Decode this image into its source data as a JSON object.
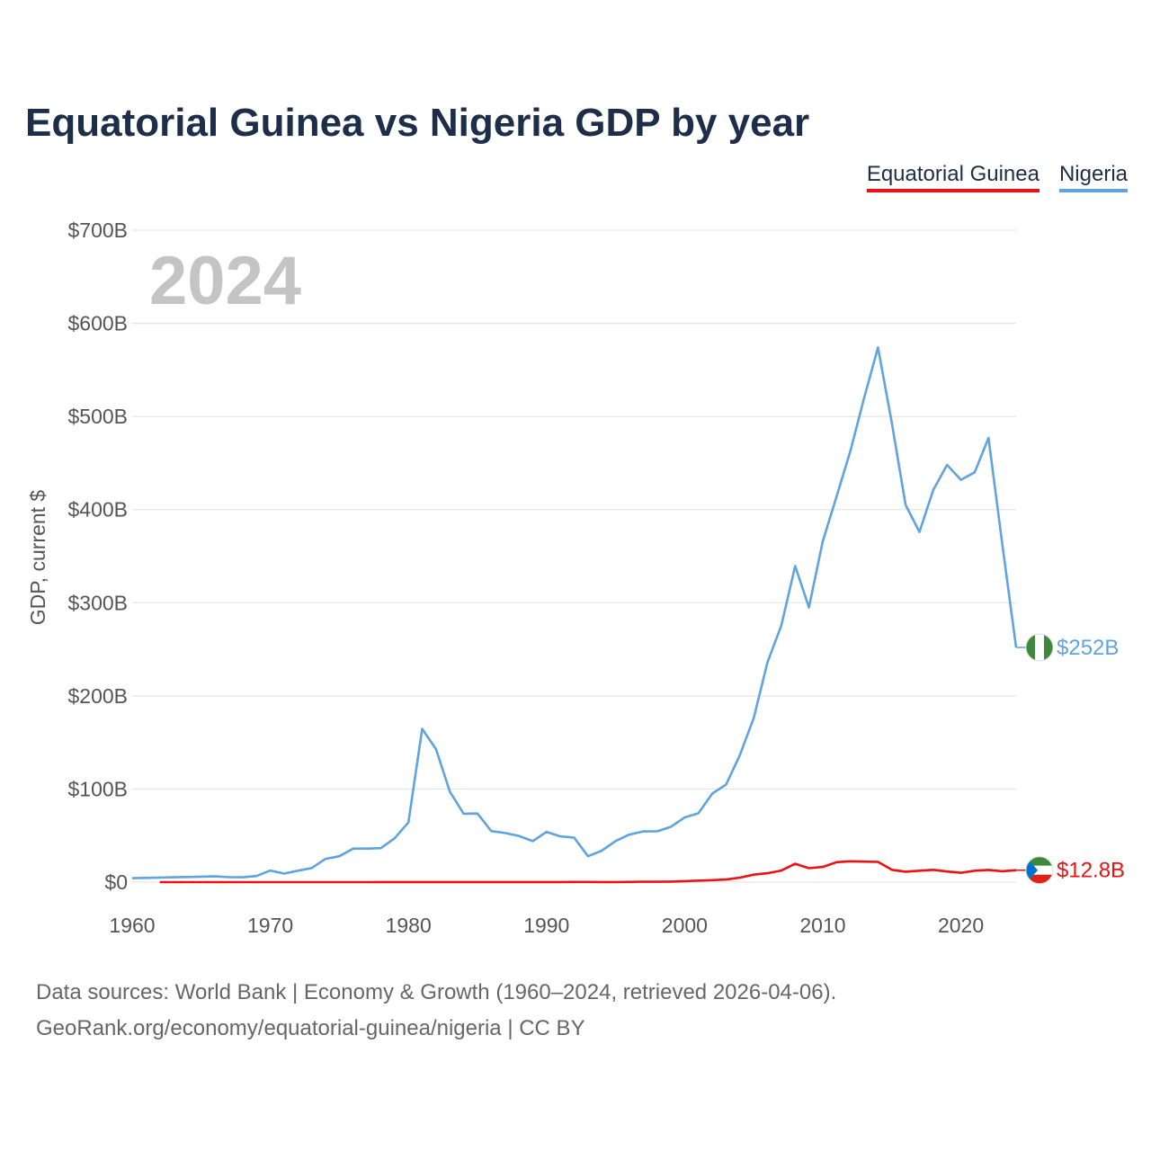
{
  "title": "Equatorial Guinea vs Nigeria GDP by year",
  "legend": {
    "equatorial_guinea": "Equatorial Guinea",
    "nigeria": "Nigeria"
  },
  "source": {
    "line1": "Data sources: World Bank | Economy & Growth (1960–2024, retrieved 2026-04-06).",
    "line2": "GeoRank.org/economy/equatorial-guinea/nigeria | CC BY"
  },
  "chart_data": {
    "type": "line",
    "title": "Equatorial Guinea vs Nigeria GDP by year",
    "ylabel": "GDP, current $",
    "xlabel": "",
    "xlim": [
      1960,
      2024
    ],
    "ylim": [
      0,
      700
    ],
    "y_unit": "billion US$",
    "x_ticks": [
      1960,
      1970,
      1980,
      1990,
      2000,
      2010,
      2020
    ],
    "y_ticks": [
      0,
      100,
      200,
      300,
      400,
      500,
      600,
      700
    ],
    "y_tick_labels": [
      "$0",
      "$100B",
      "$200B",
      "$300B",
      "$400B",
      "$500B",
      "$600B",
      "$700B"
    ],
    "year_label": "2024",
    "grid": true,
    "legend_position": "top-right",
    "series": [
      {
        "name": "Nigeria",
        "color": "#5fa3e0",
        "end_label": "$252B",
        "x": [
          1960,
          1961,
          1962,
          1963,
          1964,
          1965,
          1966,
          1967,
          1968,
          1969,
          1970,
          1971,
          1972,
          1973,
          1974,
          1975,
          1976,
          1977,
          1978,
          1979,
          1980,
          1981,
          1982,
          1983,
          1984,
          1985,
          1986,
          1987,
          1988,
          1989,
          1990,
          1991,
          1992,
          1993,
          1994,
          1995,
          1996,
          1997,
          1998,
          1999,
          2000,
          2001,
          2002,
          2003,
          2004,
          2005,
          2006,
          2007,
          2008,
          2009,
          2010,
          2011,
          2012,
          2013,
          2014,
          2015,
          2016,
          2017,
          2018,
          2019,
          2020,
          2021,
          2022,
          2023,
          2024
        ],
        "values": [
          4.2,
          4.5,
          4.9,
          5.2,
          5.5,
          5.9,
          6.2,
          5.3,
          5.2,
          6.6,
          12.5,
          9.2,
          12.3,
          15.2,
          25.0,
          27.8,
          36.0,
          36.0,
          36.5,
          47.0,
          64.2,
          164.5,
          142.8,
          97.1,
          73.5,
          73.7,
          54.8,
          52.7,
          49.6,
          44.0,
          54.0,
          49.1,
          47.8,
          27.8,
          33.8,
          44.1,
          51.1,
          54.5,
          54.6,
          59.4,
          69.4,
          74.0,
          95.1,
          104.9,
          136.4,
          176.1,
          236.1,
          275.6,
          339.5,
          295.0,
          366.0,
          414.0,
          463.0,
          520.0,
          574.0,
          493.0,
          405.0,
          376.0,
          421.0,
          448.0,
          432.0,
          440.0,
          477.0,
          363.0,
          252.0
        ]
      },
      {
        "name": "Equatorial Guinea",
        "color": "#ee1111",
        "end_label": "$12.8B",
        "x": [
          1962,
          1963,
          1964,
          1965,
          1966,
          1967,
          1968,
          1969,
          1970,
          1971,
          1972,
          1973,
          1974,
          1975,
          1976,
          1977,
          1978,
          1979,
          1980,
          1981,
          1982,
          1983,
          1984,
          1985,
          1986,
          1987,
          1988,
          1989,
          1990,
          1991,
          1992,
          1993,
          1994,
          1995,
          1996,
          1997,
          1998,
          1999,
          2000,
          2001,
          2002,
          2003,
          2004,
          2005,
          2006,
          2007,
          2008,
          2009,
          2010,
          2011,
          2012,
          2013,
          2014,
          2015,
          2016,
          2017,
          2018,
          2019,
          2020,
          2021,
          2022,
          2023,
          2024
        ],
        "values": [
          0.02,
          0.02,
          0.03,
          0.03,
          0.03,
          0.03,
          0.03,
          0.03,
          0.03,
          0.03,
          0.03,
          0.03,
          0.04,
          0.04,
          0.04,
          0.04,
          0.05,
          0.05,
          0.05,
          0.06,
          0.07,
          0.07,
          0.08,
          0.09,
          0.09,
          0.1,
          0.1,
          0.11,
          0.13,
          0.14,
          0.16,
          0.15,
          0.11,
          0.14,
          0.24,
          0.49,
          0.37,
          0.62,
          1.05,
          1.63,
          2.13,
          2.78,
          4.8,
          8.0,
          9.6,
          12.5,
          19.7,
          15.0,
          16.3,
          21.4,
          22.4,
          22.0,
          21.7,
          13.2,
          11.2,
          12.3,
          13.2,
          11.4,
          10.0,
          12.3,
          13.1,
          11.7,
          12.8
        ]
      }
    ]
  }
}
